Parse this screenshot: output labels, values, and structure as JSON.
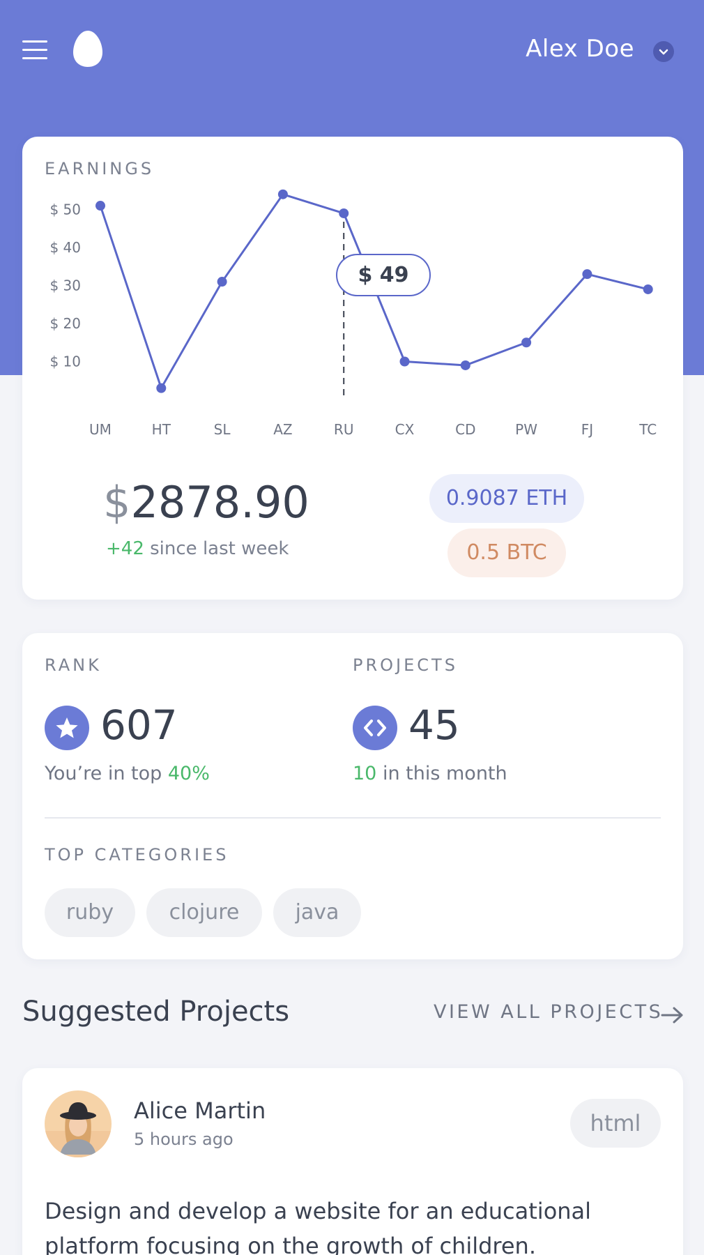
{
  "header": {
    "username": "Alex Doe",
    "menu_icon": "hamburger-menu-icon",
    "logo_icon": "egg-logo-icon",
    "caret_icon": "chevron-down-icon"
  },
  "earnings": {
    "label": "EARNINGS",
    "tooltip": "$ 49",
    "amount_currency": "$",
    "amount_value": "2878.90",
    "change": "+42",
    "change_suffix": "since last week",
    "eth": "0.9087 ETH",
    "btc": "0.5 BTC"
  },
  "chart_data": {
    "type": "line",
    "categories": [
      "UM",
      "HT",
      "SL",
      "AZ",
      "RU",
      "CX",
      "CD",
      "PW",
      "FJ",
      "TC"
    ],
    "values": [
      51,
      3,
      31,
      54,
      49,
      10,
      9,
      15,
      33,
      29
    ],
    "ytick_labels": [
      "$ 50",
      "$ 40",
      "$ 30",
      "$ 20",
      "$ 10"
    ],
    "yticks": [
      50,
      40,
      30,
      20,
      10
    ],
    "ylim": [
      0,
      55
    ],
    "highlight_index": 4,
    "grid": false,
    "color": "#5a67c9"
  },
  "stats": {
    "rank_label": "RANK",
    "rank_value": "607",
    "rank_note_prefix": "You’re in top",
    "rank_note_value": "40%",
    "projects_label": "PROJECTS",
    "projects_value": "45",
    "projects_note_value": "10",
    "projects_note_suffix": "in this month",
    "categories_label": "TOP CATEGORIES",
    "categories": [
      "ruby",
      "clojure",
      "java"
    ]
  },
  "suggested": {
    "title": "Suggested Projects",
    "view_all": "VIEW ALL PROJECTS",
    "project": {
      "author": "Alice Martin",
      "time": "5 hours ago",
      "tag": "html",
      "description": "Design and develop a website for an educational platform focusing on the growth of children."
    }
  },
  "colors": {
    "accent": "#6b7bd6",
    "positive": "#49b86a",
    "btc": "#d08a62"
  }
}
